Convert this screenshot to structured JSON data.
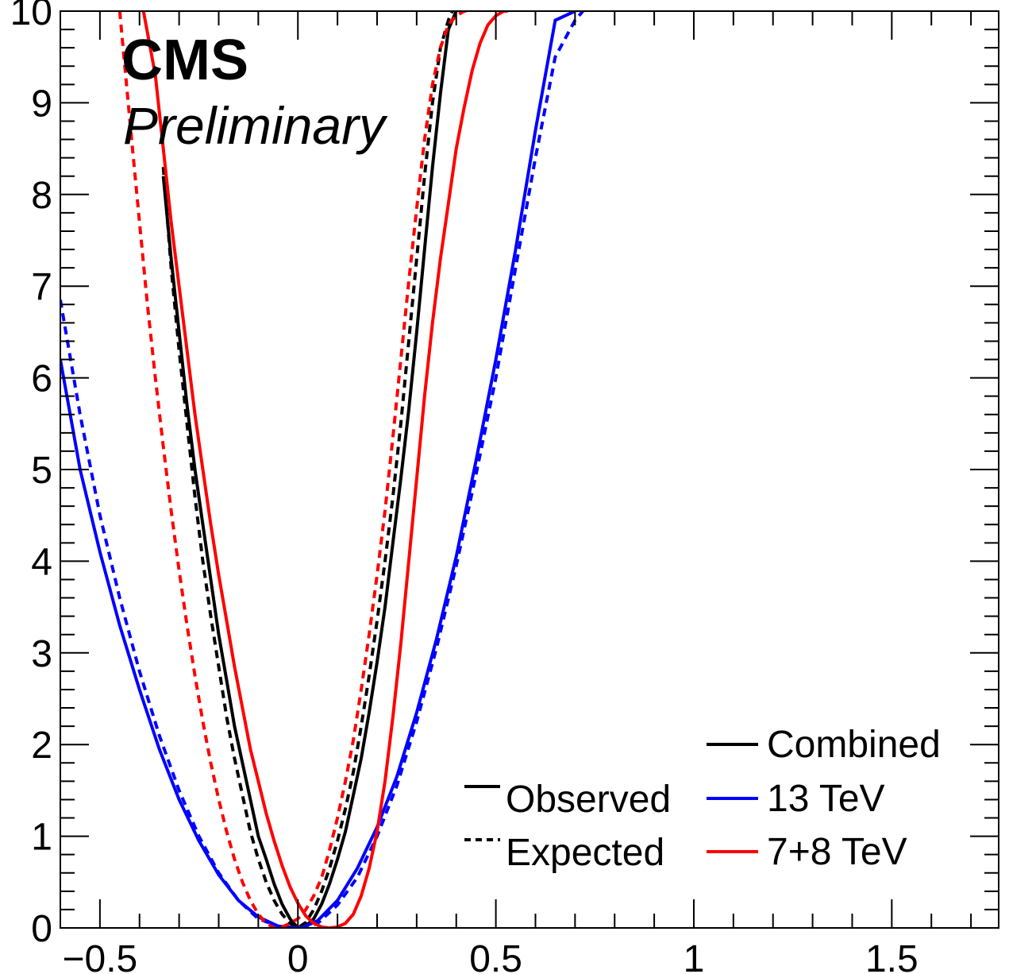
{
  "chart_data": {
    "type": "line",
    "title": "CMS",
    "subtitle": "Preliminary",
    "xlabel": "",
    "ylabel": "",
    "xlim": [
      -0.6,
      1.77
    ],
    "ylim": [
      0,
      10
    ],
    "x_ticks": [
      {
        "value": -0.5,
        "label": "−0.5"
      },
      {
        "value": 0,
        "label": "0"
      },
      {
        "value": 0.5,
        "label": "0.5"
      },
      {
        "value": 1,
        "label": "1"
      },
      {
        "value": 1.5,
        "label": "1.5"
      }
    ],
    "y_ticks": [
      {
        "value": 0,
        "label": "0"
      },
      {
        "value": 1,
        "label": "1"
      },
      {
        "value": 2,
        "label": "2"
      },
      {
        "value": 3,
        "label": "3"
      },
      {
        "value": 4,
        "label": "4"
      },
      {
        "value": 5,
        "label": "5"
      },
      {
        "value": 6,
        "label": "6"
      },
      {
        "value": 7,
        "label": "7"
      },
      {
        "value": 8,
        "label": "8"
      },
      {
        "value": 9,
        "label": "9"
      },
      {
        "value": 10,
        "label": "10"
      }
    ],
    "grid": false,
    "legend": {
      "placement": "bottom-right",
      "style_entries": [
        {
          "label": "Observed",
          "dash": "solid"
        },
        {
          "label": "Expected",
          "dash": "dashed"
        }
      ],
      "color_entries": [
        {
          "label": "Combined",
          "color": "#000000"
        },
        {
          "label": "13 TeV",
          "color": "#0000ff"
        },
        {
          "label": "7+8 TeV",
          "color": "#ff0000"
        }
      ]
    },
    "series": [
      {
        "name": "Combined",
        "style": "Observed",
        "color": "#000000",
        "dash": "solid",
        "x": [
          -0.34,
          -0.32,
          -0.3,
          -0.28,
          -0.26,
          -0.24,
          -0.22,
          -0.2,
          -0.18,
          -0.16,
          -0.14,
          -0.12,
          -0.1,
          -0.08,
          -0.06,
          -0.04,
          -0.02,
          0.0,
          0.02,
          0.04,
          0.06,
          0.08,
          0.1,
          0.12,
          0.14,
          0.16,
          0.18,
          0.2,
          0.22,
          0.24,
          0.26,
          0.28,
          0.3,
          0.32,
          0.34,
          0.36,
          0.38,
          0.4
        ],
        "y": [
          8.2,
          7.3,
          6.5,
          5.7,
          5.0,
          4.4,
          3.8,
          3.2,
          2.7,
          2.2,
          1.8,
          1.4,
          1.0,
          0.75,
          0.48,
          0.26,
          0.1,
          0.0,
          0.02,
          0.1,
          0.26,
          0.48,
          0.75,
          1.05,
          1.45,
          1.85,
          2.35,
          2.9,
          3.5,
          4.2,
          4.9,
          5.65,
          6.5,
          7.4,
          8.3,
          9.1,
          9.8,
          10.0
        ]
      },
      {
        "name": "Combined",
        "style": "Expected",
        "color": "#000000",
        "dash": "dashed",
        "x": [
          -0.34,
          -0.32,
          -0.3,
          -0.28,
          -0.26,
          -0.24,
          -0.22,
          -0.2,
          -0.18,
          -0.16,
          -0.14,
          -0.12,
          -0.1,
          -0.08,
          -0.06,
          -0.04,
          -0.02,
          0.0,
          0.02,
          0.04,
          0.06,
          0.08,
          0.1,
          0.12,
          0.14,
          0.16,
          0.18,
          0.2,
          0.22,
          0.24,
          0.26,
          0.28,
          0.3,
          0.32,
          0.34,
          0.36,
          0.38,
          0.39
        ],
        "y": [
          8.3,
          7.2,
          6.3,
          5.5,
          4.7,
          4.0,
          3.4,
          2.85,
          2.3,
          1.85,
          1.45,
          1.05,
          0.75,
          0.5,
          0.3,
          0.15,
          0.05,
          0.0,
          0.06,
          0.2,
          0.4,
          0.65,
          0.95,
          1.3,
          1.7,
          2.2,
          2.75,
          3.35,
          4.0,
          4.7,
          5.5,
          6.4,
          7.3,
          8.2,
          9.0,
          9.6,
          9.9,
          10.0
        ]
      },
      {
        "name": "13 TeV",
        "style": "Observed",
        "color": "#0000ff",
        "dash": "solid",
        "x": [
          -0.6,
          -0.55,
          -0.5,
          -0.45,
          -0.4,
          -0.35,
          -0.3,
          -0.25,
          -0.2,
          -0.15,
          -0.1,
          -0.05,
          0.0,
          0.02,
          0.05,
          0.1,
          0.15,
          0.2,
          0.25,
          0.3,
          0.35,
          0.4,
          0.45,
          0.5,
          0.55,
          0.6,
          0.65,
          0.7
        ],
        "y": [
          6.2,
          5.0,
          4.1,
          3.3,
          2.6,
          1.95,
          1.4,
          0.95,
          0.58,
          0.3,
          0.12,
          0.02,
          0.0,
          0.02,
          0.08,
          0.3,
          0.65,
          1.1,
          1.65,
          2.35,
          3.15,
          4.05,
          5.1,
          6.2,
          7.4,
          8.7,
          9.9,
          10.0
        ]
      },
      {
        "name": "13 TeV",
        "style": "Expected",
        "color": "#0000ff",
        "dash": "dashed",
        "x": [
          -0.6,
          -0.55,
          -0.5,
          -0.45,
          -0.4,
          -0.35,
          -0.3,
          -0.25,
          -0.2,
          -0.15,
          -0.1,
          -0.05,
          0.0,
          0.02,
          0.05,
          0.1,
          0.15,
          0.2,
          0.25,
          0.3,
          0.35,
          0.4,
          0.45,
          0.5,
          0.55,
          0.6,
          0.65,
          0.7,
          0.72
        ],
        "y": [
          6.85,
          5.6,
          4.5,
          3.6,
          2.8,
          2.1,
          1.5,
          1.0,
          0.6,
          0.3,
          0.1,
          0.02,
          0.0,
          0.0,
          0.05,
          0.25,
          0.55,
          1.0,
          1.55,
          2.25,
          3.05,
          3.95,
          4.95,
          6.0,
          7.2,
          8.4,
          9.5,
          9.9,
          10.0
        ]
      },
      {
        "name": "7+8 TeV",
        "style": "Observed",
        "color": "#ff0000",
        "dash": "solid",
        "x": [
          -0.39,
          -0.36,
          -0.34,
          -0.32,
          -0.3,
          -0.28,
          -0.26,
          -0.24,
          -0.22,
          -0.2,
          -0.18,
          -0.16,
          -0.14,
          -0.12,
          -0.1,
          -0.08,
          -0.06,
          -0.04,
          -0.02,
          0.0,
          0.02,
          0.04,
          0.06,
          0.08,
          0.1,
          0.12,
          0.14,
          0.16,
          0.18,
          0.2,
          0.22,
          0.24,
          0.26,
          0.28,
          0.3,
          0.32,
          0.34,
          0.36,
          0.38,
          0.4,
          0.42,
          0.44,
          0.46,
          0.48,
          0.5,
          0.52,
          0.53
        ],
        "y": [
          10.0,
          9.3,
          8.5,
          7.7,
          7.0,
          6.3,
          5.6,
          5.0,
          4.4,
          3.85,
          3.35,
          2.85,
          2.4,
          1.95,
          1.6,
          1.25,
          0.95,
          0.68,
          0.45,
          0.27,
          0.13,
          0.05,
          0.01,
          0.0,
          0.01,
          0.05,
          0.15,
          0.35,
          0.65,
          1.05,
          1.6,
          2.3,
          3.1,
          4.0,
          4.9,
          5.8,
          6.6,
          7.3,
          7.9,
          8.5,
          8.95,
          9.35,
          9.65,
          9.85,
          9.95,
          10.0,
          10.0
        ]
      },
      {
        "name": "7+8 TeV",
        "style": "Expected",
        "color": "#ff0000",
        "dash": "dashed",
        "x": [
          -0.45,
          -0.42,
          -0.4,
          -0.38,
          -0.36,
          -0.34,
          -0.32,
          -0.3,
          -0.28,
          -0.26,
          -0.24,
          -0.22,
          -0.2,
          -0.18,
          -0.16,
          -0.14,
          -0.12,
          -0.1,
          -0.08,
          -0.06,
          -0.04,
          -0.02,
          0.0,
          0.02,
          0.04,
          0.06,
          0.08,
          0.1,
          0.12,
          0.14,
          0.16,
          0.18,
          0.2,
          0.22,
          0.24,
          0.26,
          0.28,
          0.3,
          0.32,
          0.34,
          0.36,
          0.38,
          0.4,
          0.42,
          0.43
        ],
        "y": [
          10.0,
          8.6,
          7.7,
          6.8,
          6.0,
          5.25,
          4.55,
          3.9,
          3.3,
          2.75,
          2.25,
          1.8,
          1.4,
          1.05,
          0.75,
          0.5,
          0.3,
          0.15,
          0.05,
          0.0,
          0.01,
          0.05,
          0.1,
          0.2,
          0.35,
          0.55,
          0.85,
          1.2,
          1.6,
          2.05,
          2.6,
          3.2,
          3.85,
          4.55,
          5.35,
          6.2,
          7.05,
          7.85,
          8.6,
          9.2,
          9.6,
          9.85,
          9.95,
          10.0,
          10.0
        ]
      }
    ]
  }
}
